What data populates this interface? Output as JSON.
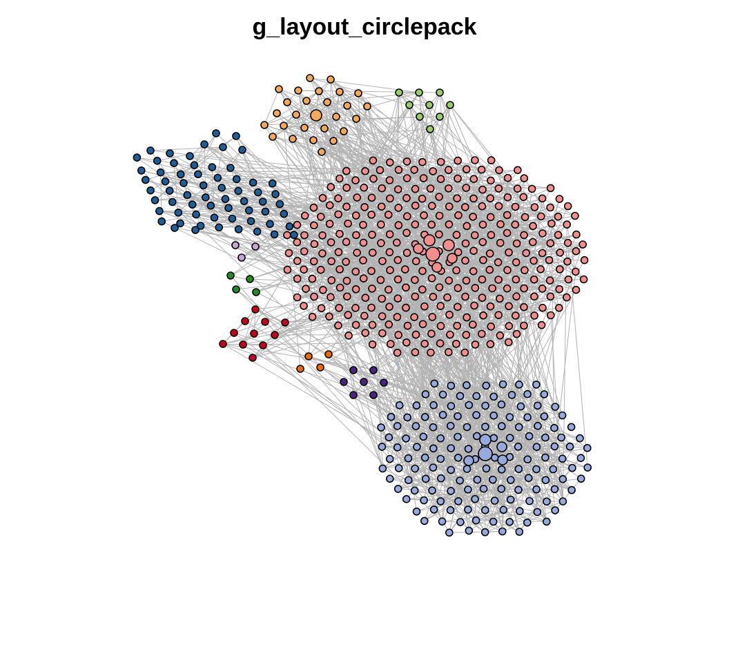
{
  "title": "g_layout_circlepack",
  "colors": {
    "edge": "#b3b3b3",
    "node_stroke": "#000000",
    "groups": {
      "salmon": "#f28e8e",
      "lightblue": "#96aadd",
      "steelblue": "#1f5f99",
      "orange": "#f5a85a",
      "lightgreen": "#9acd6a",
      "lavender": "#c6a6d4",
      "green": "#228b22",
      "red": "#c8001e",
      "darkorange": "#f06a00",
      "purple": "#4b2482"
    }
  }
}
